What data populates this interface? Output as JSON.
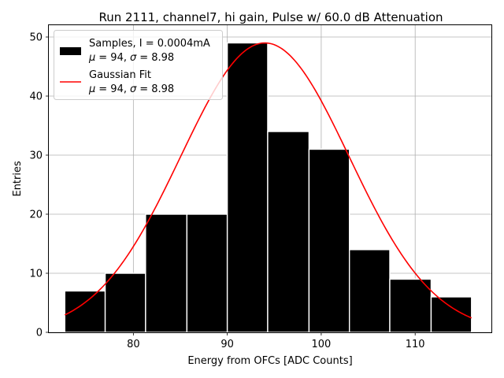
{
  "chart_data": {
    "type": "bar",
    "title": "Run 2111, channel7, hi gain, Pulse w/ 60.0 dB Attenuation",
    "xlabel": "Energy from OFCs [ADC Counts]",
    "ylabel": "Entries",
    "xlim": [
      71.0,
      118.2
    ],
    "ylim": [
      0,
      52
    ],
    "xticks": [
      80,
      90,
      100,
      110
    ],
    "yticks": [
      0,
      10,
      20,
      30,
      40,
      50
    ],
    "grid": true,
    "bins": [
      {
        "x0": 72.7,
        "x1": 77.0,
        "count": 7
      },
      {
        "x0": 77.0,
        "x1": 81.3,
        "count": 10
      },
      {
        "x0": 81.3,
        "x1": 85.7,
        "count": 20
      },
      {
        "x0": 85.7,
        "x1": 90.0,
        "count": 20
      },
      {
        "x0": 90.0,
        "x1": 94.3,
        "count": 49
      },
      {
        "x0": 94.3,
        "x1": 98.7,
        "count": 34
      },
      {
        "x0": 98.7,
        "x1": 103.0,
        "count": 31
      },
      {
        "x0": 103.0,
        "x1": 107.3,
        "count": 14
      },
      {
        "x0": 107.3,
        "x1": 111.7,
        "count": 9
      },
      {
        "x0": 111.7,
        "x1": 116.0,
        "count": 6
      }
    ],
    "fit": {
      "type": "gaussian",
      "amplitude": 49,
      "mu": 94,
      "sigma": 8.98,
      "x_range": [
        72.7,
        116.0
      ]
    },
    "colors": {
      "bars": "#000000",
      "bar_edge": "#ffffff",
      "fit": "#ff0000",
      "grid": "#b0b0b0"
    },
    "legend": {
      "placement": "top-left",
      "entries": [
        {
          "line1": "Samples, I = 0.0004mA",
          "mu_label": "μ",
          "mu_value": "= 94,",
          "sigma_label": "σ",
          "sigma_value": "= 8.98"
        },
        {
          "line1": "Gaussian Fit",
          "mu_label": "μ",
          "mu_value": "= 94,",
          "sigma_label": "σ",
          "sigma_value": "= 8.98"
        }
      ]
    }
  }
}
